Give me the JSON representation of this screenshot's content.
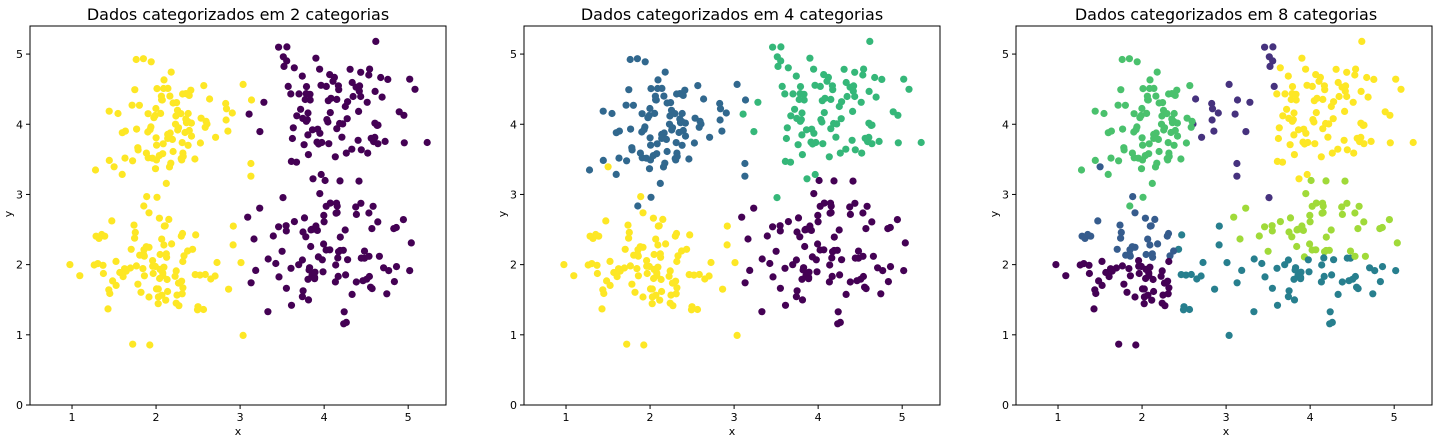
{
  "chart_data": [
    {
      "type": "scatter",
      "title": "Dados categorizados em 2 categorias",
      "xlabel": "x",
      "ylabel": "y",
      "xlim": [
        0.5,
        5.45
      ],
      "ylim": [
        0,
        5.4
      ],
      "xticks": [
        "1",
        "2",
        "3",
        "4",
        "5"
      ],
      "yticks": [
        "0",
        "1",
        "2",
        "3",
        "4",
        "5"
      ],
      "grid": false,
      "cluster_colors": [
        "#440154",
        "#fde725"
      ],
      "clusters": [
        {
          "cx": 4.1,
          "cy": 4.15,
          "spread": 0.42,
          "n": 100,
          "seed": 11,
          "color_index": 0
        },
        {
          "cx": 4.05,
          "cy": 2.2,
          "spread": 0.42,
          "n": 100,
          "seed": 12,
          "color_index": 0
        },
        {
          "cx": 2.05,
          "cy": 4.0,
          "spread": 0.42,
          "n": 100,
          "seed": 13,
          "color_index": 1
        },
        {
          "cx": 2.0,
          "cy": 2.0,
          "spread": 0.42,
          "n": 100,
          "seed": 14,
          "color_index": 1
        }
      ]
    },
    {
      "type": "scatter",
      "title": "Dados categorizados em 4 categorias",
      "xlabel": "x",
      "ylabel": "y",
      "xlim": [
        0.5,
        5.45
      ],
      "ylim": [
        0,
        5.4
      ],
      "xticks": [
        "1",
        "2",
        "3",
        "4",
        "5"
      ],
      "yticks": [
        "0",
        "1",
        "2",
        "3",
        "4",
        "5"
      ],
      "grid": false,
      "cluster_colors": [
        "#440154",
        "#31688e",
        "#35b779",
        "#fde725"
      ],
      "clusters": [
        {
          "cx": 4.1,
          "cy": 4.15,
          "spread": 0.42,
          "n": 100,
          "seed": 11,
          "color_index": 2
        },
        {
          "cx": 4.05,
          "cy": 2.2,
          "spread": 0.42,
          "n": 100,
          "seed": 12,
          "color_index": 0
        },
        {
          "cx": 2.05,
          "cy": 4.0,
          "spread": 0.42,
          "n": 100,
          "seed": 13,
          "color_index": 1
        },
        {
          "cx": 2.0,
          "cy": 2.0,
          "spread": 0.42,
          "n": 100,
          "seed": 14,
          "color_index": 3
        }
      ]
    },
    {
      "type": "scatter",
      "title": "Dados categorizados em 8 categorias",
      "xlabel": "x",
      "ylabel": "y",
      "xlim": [
        0.5,
        5.45
      ],
      "ylim": [
        0,
        5.4
      ],
      "xticks": [
        "1",
        "2",
        "3",
        "4",
        "5"
      ],
      "yticks": [
        "0",
        "1",
        "2",
        "3",
        "4",
        "5"
      ],
      "grid": false,
      "cluster_colors": [
        "#440154",
        "#46327e",
        "#365c8d",
        "#277f8e",
        "#1fa187",
        "#4ac16d",
        "#a0da39",
        "#fde725"
      ],
      "clusters": [
        {
          "cx": 4.1,
          "cy": 4.15,
          "spread": 0.42,
          "n": 100,
          "seed": 11,
          "color_index": 7
        },
        {
          "cx": 4.05,
          "cy": 2.2,
          "spread": 0.42,
          "n": 100,
          "seed": 12,
          "color_index": 6
        },
        {
          "cx": 2.05,
          "cy": 4.0,
          "spread": 0.42,
          "n": 100,
          "seed": 13,
          "color_index": 5
        },
        {
          "cx": 2.0,
          "cy": 2.0,
          "spread": 0.42,
          "n": 100,
          "seed": 14,
          "color_index": 0
        }
      ]
    }
  ]
}
